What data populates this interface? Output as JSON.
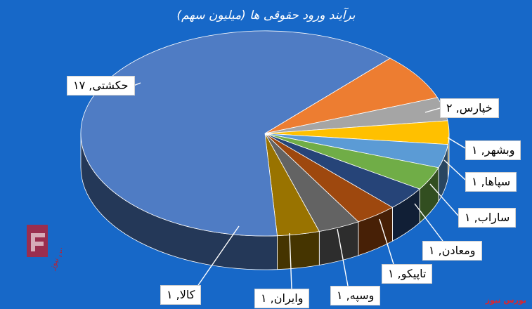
{
  "chart_data": {
    "type": "pie",
    "title": "برآیند ورود حقوقی ها (میلیون سهم)",
    "slices": [
      {
        "label": "حکشتی, ۱۷",
        "value": 17,
        "color": "#4f7cc4"
      },
      {
        "label": "خپارس, ۲",
        "value": 2,
        "color": "#ed7d31"
      },
      {
        "label": "وبشهر, ۱",
        "value": 1,
        "color": "#a5a5a5"
      },
      {
        "label": "سپاها, ۱",
        "value": 1,
        "color": "#ffc000"
      },
      {
        "label": "ساراب, ۱",
        "value": 1,
        "color": "#5b9bd5"
      },
      {
        "label": "ومعادن, ۱",
        "value": 1,
        "color": "#70ad47"
      },
      {
        "label": "تاپیکو, ۱",
        "value": 1,
        "color": "#264478"
      },
      {
        "label": "وسپه, ۱",
        "value": 1,
        "color": "#9e480e"
      },
      {
        "label": "وایران, ۱",
        "value": 1,
        "color": "#636363"
      },
      {
        "label": "کالا, ۱",
        "value": 1,
        "color": "#997300"
      }
    ]
  },
  "watermark": {
    "left_text": "بورس نیوز",
    "corner_text": "بورس نیوز"
  }
}
